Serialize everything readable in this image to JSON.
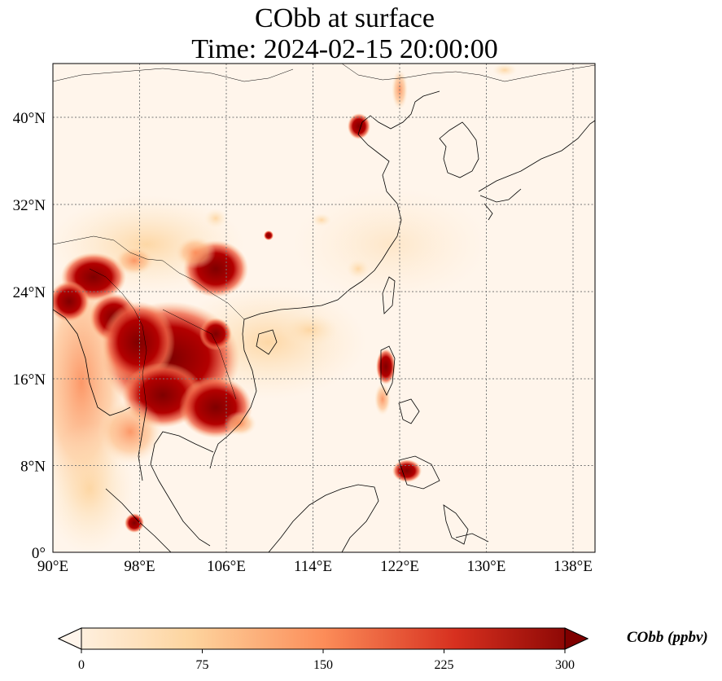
{
  "title_line1": "CObb at surface",
  "title_line2": "Time: 2024-02-15 20:00:00",
  "lon_ticks": [
    "90°E",
    "98°E",
    "106°E",
    "114°E",
    "122°E",
    "130°E",
    "138°E"
  ],
  "lat_ticks": [
    "0°",
    "8°N",
    "16°N",
    "24°N",
    "32°N",
    "40°N"
  ],
  "colorbar": {
    "label": "CObb (ppbv)",
    "ticks": [
      "0",
      "75",
      "150",
      "225",
      "300"
    ],
    "colors": [
      "#fff5eb",
      "#fdd49e",
      "#fc8d59",
      "#d7301f",
      "#7f0000"
    ]
  }
}
